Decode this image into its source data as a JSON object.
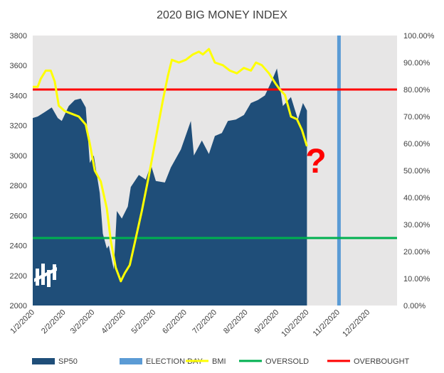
{
  "chart_data": {
    "type": "area",
    "title": "2020 BIG MONEY INDEX",
    "annotation": "?",
    "x_tick_labels": [
      "1/2/2020",
      "2/2/2020",
      "3/2/2020",
      "4/2/2020",
      "5/2/2020",
      "6/2/2020",
      "7/2/2020",
      "8/2/2020",
      "9/2/2020",
      "10/2/2020",
      "11/2/2020",
      "12/2/2020"
    ],
    "x_range": [
      "2020-01-02",
      "2020-12-31"
    ],
    "y_left": {
      "min": 2000,
      "max": 3800,
      "step": 200,
      "tick_labels": [
        "2000",
        "2200",
        "2400",
        "2600",
        "2800",
        "3000",
        "3200",
        "3400",
        "3600",
        "3800"
      ]
    },
    "y_right": {
      "min": 0,
      "max": 1,
      "step": 0.1,
      "tick_labels": [
        "0.00%",
        "10.00%",
        "20.00%",
        "30.00%",
        "40.00%",
        "50.00%",
        "60.00%",
        "70.00%",
        "80.00%",
        "90.00%",
        "100.00%"
      ]
    },
    "grid": false,
    "legend_position": "bottom",
    "series": [
      {
        "name": "SP50",
        "kind": "area",
        "axis": "left",
        "color": "#1f4e79",
        "points": [
          [
            "2020-01-02",
            3250
          ],
          [
            "2020-01-07",
            3260
          ],
          [
            "2020-01-14",
            3290
          ],
          [
            "2020-01-21",
            3320
          ],
          [
            "2020-01-27",
            3250
          ],
          [
            "2020-01-31",
            3230
          ],
          [
            "2020-02-07",
            3330
          ],
          [
            "2020-02-13",
            3370
          ],
          [
            "2020-02-19",
            3380
          ],
          [
            "2020-02-24",
            3320
          ],
          [
            "2020-02-28",
            2950
          ],
          [
            "2020-03-03",
            3000
          ],
          [
            "2020-03-09",
            2750
          ],
          [
            "2020-03-12",
            2480
          ],
          [
            "2020-03-16",
            2380
          ],
          [
            "2020-03-18",
            2400
          ],
          [
            "2020-03-23",
            2240
          ],
          [
            "2020-03-26",
            2630
          ],
          [
            "2020-03-31",
            2580
          ],
          [
            "2020-04-06",
            2660
          ],
          [
            "2020-04-09",
            2790
          ],
          [
            "2020-04-17",
            2870
          ],
          [
            "2020-04-24",
            2840
          ],
          [
            "2020-04-29",
            2940
          ],
          [
            "2020-05-04",
            2830
          ],
          [
            "2020-05-13",
            2820
          ],
          [
            "2020-05-19",
            2920
          ],
          [
            "2020-05-29",
            3040
          ],
          [
            "2020-06-08",
            3230
          ],
          [
            "2020-06-11",
            3000
          ],
          [
            "2020-06-19",
            3100
          ],
          [
            "2020-06-26",
            3010
          ],
          [
            "2020-07-02",
            3130
          ],
          [
            "2020-07-09",
            3150
          ],
          [
            "2020-07-15",
            3230
          ],
          [
            "2020-07-23",
            3240
          ],
          [
            "2020-07-31",
            3270
          ],
          [
            "2020-08-07",
            3350
          ],
          [
            "2020-08-14",
            3370
          ],
          [
            "2020-08-21",
            3400
          ],
          [
            "2020-08-28",
            3500
          ],
          [
            "2020-09-02",
            3580
          ],
          [
            "2020-09-08",
            3330
          ],
          [
            "2020-09-16",
            3390
          ],
          [
            "2020-09-23",
            3240
          ],
          [
            "2020-09-28",
            3350
          ],
          [
            "2020-10-02",
            3300
          ]
        ]
      },
      {
        "name": "ELECTION DAY",
        "kind": "vline",
        "date": "2020-11-03",
        "color": "#5b9bd5"
      },
      {
        "name": "BMI",
        "kind": "line",
        "axis": "right",
        "color": "#ffff00",
        "points": [
          [
            "2020-01-02",
            0.81
          ],
          [
            "2020-01-07",
            0.81
          ],
          [
            "2020-01-10",
            0.84
          ],
          [
            "2020-01-15",
            0.87
          ],
          [
            "2020-01-20",
            0.87
          ],
          [
            "2020-01-24",
            0.83
          ],
          [
            "2020-01-28",
            0.74
          ],
          [
            "2020-02-03",
            0.72
          ],
          [
            "2020-02-10",
            0.71
          ],
          [
            "2020-02-17",
            0.7
          ],
          [
            "2020-02-24",
            0.67
          ],
          [
            "2020-02-28",
            0.6
          ],
          [
            "2020-03-04",
            0.5
          ],
          [
            "2020-03-10",
            0.46
          ],
          [
            "2020-03-16",
            0.36
          ],
          [
            "2020-03-20",
            0.24
          ],
          [
            "2020-03-25",
            0.14
          ],
          [
            "2020-03-30",
            0.09
          ],
          [
            "2020-04-03",
            0.12
          ],
          [
            "2020-04-08",
            0.15
          ],
          [
            "2020-04-14",
            0.25
          ],
          [
            "2020-04-20",
            0.35
          ],
          [
            "2020-04-27",
            0.48
          ],
          [
            "2020-05-04",
            0.62
          ],
          [
            "2020-05-11",
            0.76
          ],
          [
            "2020-05-16",
            0.85
          ],
          [
            "2020-05-20",
            0.91
          ],
          [
            "2020-05-27",
            0.9
          ],
          [
            "2020-06-03",
            0.91
          ],
          [
            "2020-06-10",
            0.93
          ],
          [
            "2020-06-16",
            0.94
          ],
          [
            "2020-06-20",
            0.93
          ],
          [
            "2020-06-26",
            0.95
          ],
          [
            "2020-07-02",
            0.9
          ],
          [
            "2020-07-10",
            0.89
          ],
          [
            "2020-07-17",
            0.87
          ],
          [
            "2020-07-24",
            0.86
          ],
          [
            "2020-07-31",
            0.88
          ],
          [
            "2020-08-07",
            0.87
          ],
          [
            "2020-08-12",
            0.9
          ],
          [
            "2020-08-18",
            0.89
          ],
          [
            "2020-08-25",
            0.86
          ],
          [
            "2020-09-01",
            0.82
          ],
          [
            "2020-09-05",
            0.8
          ],
          [
            "2020-09-10",
            0.78
          ],
          [
            "2020-09-16",
            0.7
          ],
          [
            "2020-09-22",
            0.69
          ],
          [
            "2020-09-27",
            0.65
          ],
          [
            "2020-10-02",
            0.59
          ]
        ]
      },
      {
        "name": "OVERSOLD",
        "kind": "hline",
        "axis": "right",
        "value": 0.25,
        "color": "#00b050"
      },
      {
        "name": "OVERBOUGHT",
        "kind": "hline",
        "axis": "right",
        "value": 0.8,
        "color": "#ff0000"
      }
    ]
  }
}
